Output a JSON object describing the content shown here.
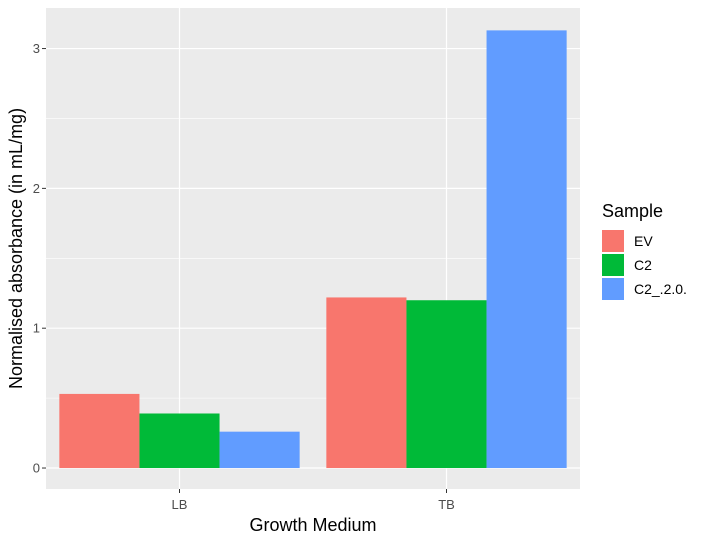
{
  "chart_data": {
    "type": "bar",
    "title": "",
    "xlabel": "Growth Medium",
    "ylabel": "Normalised absorbance (in mL/mg)",
    "categories": [
      "LB",
      "TB"
    ],
    "series": [
      {
        "name": "EV",
        "color": "#F8766D",
        "values": [
          0.53,
          1.22
        ]
      },
      {
        "name": "C2",
        "color": "#00BA38",
        "values": [
          0.39,
          1.2
        ]
      },
      {
        "name": "C2_.2.0.",
        "color": "#619CFF",
        "values": [
          0.26,
          3.13
        ]
      }
    ],
    "ylim": [
      -0.15,
      3.29
    ],
    "yticks": [
      0,
      1,
      2,
      3
    ],
    "grid": true,
    "legend": {
      "title": "Sample",
      "placement": "right"
    },
    "background_color": "#EBEBEB",
    "grid_color": "#FFFFFF"
  }
}
